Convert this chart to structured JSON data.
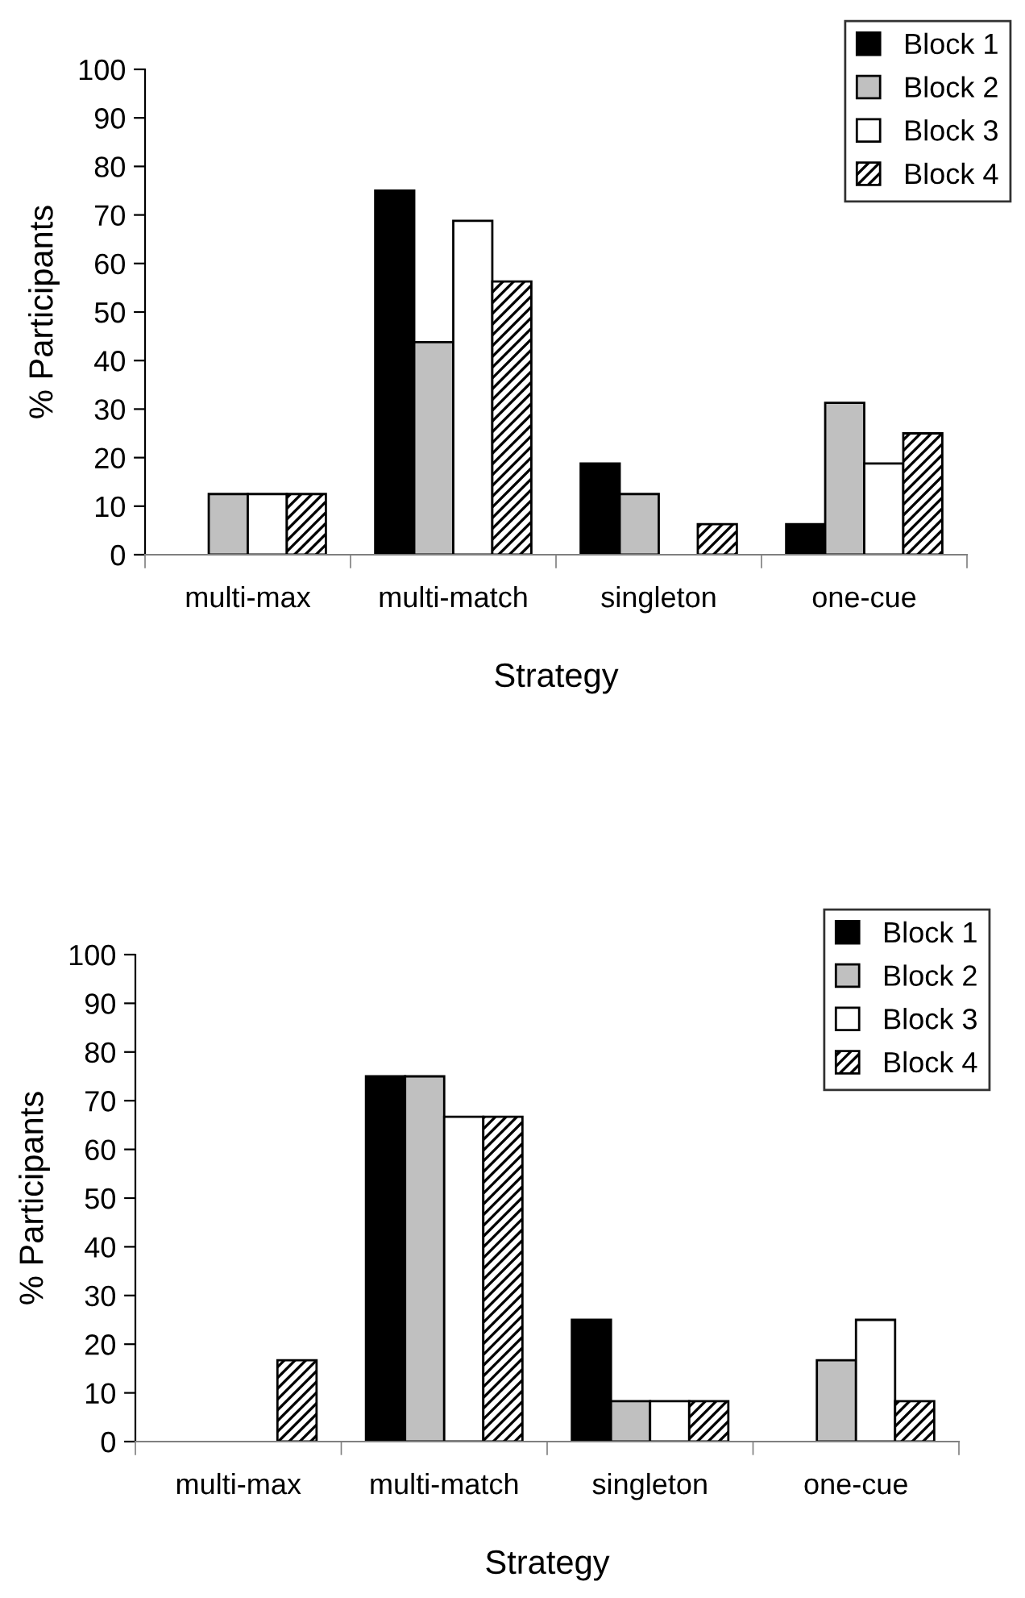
{
  "chart_data": [
    {
      "type": "bar",
      "xlabel": "Strategy",
      "ylabel": "% Participants",
      "categories": [
        "multi-max",
        "multi-match",
        "singleton",
        "one-cue"
      ],
      "ylim": [
        0,
        100
      ],
      "yticks": [
        0,
        10,
        20,
        30,
        40,
        50,
        60,
        70,
        80,
        90,
        100
      ],
      "legend": "top right",
      "grid": false,
      "series": [
        {
          "name": "Block 1",
          "color": "#000000",
          "values": [
            0,
            75,
            18.8,
            6.3
          ]
        },
        {
          "name": "Block 2",
          "color": "#c0c0c0",
          "values": [
            12.5,
            43.8,
            12.5,
            31.3
          ]
        },
        {
          "name": "Block 3",
          "color": "#ffffff",
          "values": [
            12.5,
            68.8,
            0,
            18.8
          ]
        },
        {
          "name": "Block 4",
          "color": "#000000",
          "values": [
            12.5,
            56.3,
            6.3,
            25
          ]
        }
      ]
    },
    {
      "type": "bar",
      "xlabel": "Strategy",
      "ylabel": "% Participants",
      "categories": [
        "multi-max",
        "multi-match",
        "singleton",
        "one-cue"
      ],
      "ylim": [
        0,
        100
      ],
      "yticks": [
        0,
        10,
        20,
        30,
        40,
        50,
        60,
        70,
        80,
        90,
        100
      ],
      "legend": "top right",
      "grid": false,
      "series": [
        {
          "name": "Block 1",
          "color": "#000000",
          "values": [
            0,
            75,
            25,
            0
          ]
        },
        {
          "name": "Block 2",
          "color": "#c0c0c0",
          "values": [
            0,
            75,
            8.3,
            16.7
          ]
        },
        {
          "name": "Block 3",
          "color": "#ffffff",
          "values": [
            0,
            66.7,
            8.3,
            25
          ]
        },
        {
          "name": "Block 4",
          "color": "#000000",
          "values": [
            16.7,
            66.7,
            8.3,
            8.3
          ]
        }
      ]
    }
  ]
}
